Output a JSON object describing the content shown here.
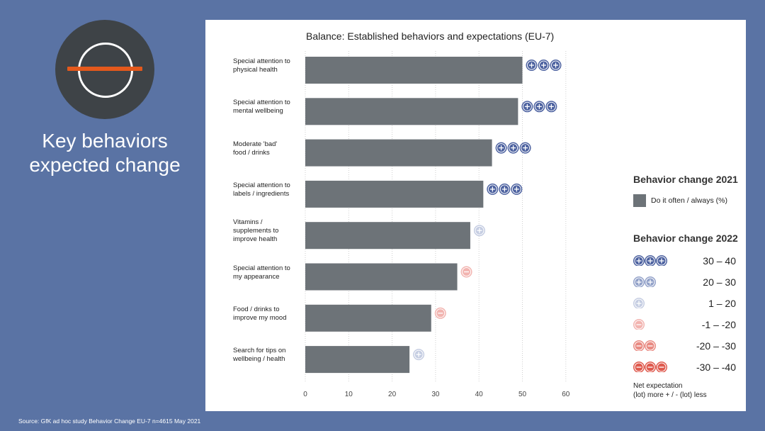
{
  "page": {
    "headline_line1": "Key behaviors",
    "headline_line2": "expected change",
    "source": "Source: GfK ad hoc study Behavior Change EU-7 n=4615 May 2021"
  },
  "chart_data": {
    "type": "bar",
    "orientation": "horizontal",
    "title": "Balance: Established behaviors and expectations (EU-7)",
    "categories": [
      [
        "Special attention to",
        "physical health"
      ],
      [
        "Special attention to",
        "mental wellbeing"
      ],
      [
        "Moderate 'bad'",
        "food / drinks"
      ],
      [
        "Special attention to",
        "labels / ingredients"
      ],
      [
        "Vitamins /",
        "supplements to",
        "improve health"
      ],
      [
        "Special attention to",
        "my appearance"
      ],
      [
        "Food / drinks to",
        "improve my mood"
      ],
      [
        "Search for tips on",
        "wellbeing / health"
      ]
    ],
    "series": [
      {
        "name": "Do it often / always (%)",
        "values": [
          50,
          49,
          43,
          41,
          38,
          35,
          29,
          24
        ]
      }
    ],
    "expectation_2022": [
      3,
      3,
      3,
      3,
      1,
      -1,
      -1,
      1
    ],
    "xlim": [
      0,
      60
    ],
    "xticks": [
      0,
      10,
      20,
      30,
      40,
      50,
      60
    ],
    "grid": "vertical dotted",
    "legend": {
      "title_2021": "Behavior change 2021",
      "bar_label": "Do it often / always (%)",
      "title_2022": "Behavior change 2022",
      "ranges": [
        {
          "level": 3,
          "label": "30 – 40"
        },
        {
          "level": 2,
          "label": "20 – 30"
        },
        {
          "level": 1,
          "label": "1 – 20"
        },
        {
          "level": -1,
          "label": "-1 – -20"
        },
        {
          "level": -2,
          "label": "-20 – -30"
        },
        {
          "level": -3,
          "label": "-30 – -40"
        }
      ],
      "note_line1": "Net expectation",
      "note_line2": "(lot) more + / - (lot) less"
    },
    "colors": {
      "bar": "#6d7378",
      "plus_strong": "#4d62a0",
      "plus_medium": "#93a2c9",
      "plus_light": "#c5cde2",
      "minus_light": "#f2b4b0",
      "minus_medium": "#e98b83",
      "minus_strong": "#df5a4e"
    }
  }
}
